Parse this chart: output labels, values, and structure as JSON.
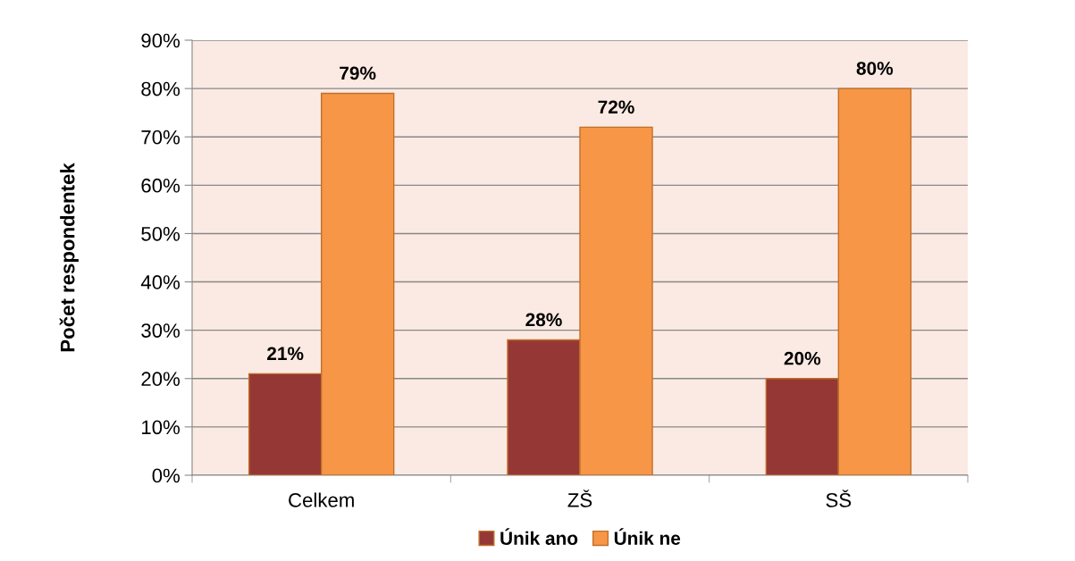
{
  "chart_data": {
    "type": "bar",
    "ylabel": "Počet respondentek",
    "categories": [
      "Celkem",
      "ZŠ",
      "SŠ"
    ],
    "series": [
      {
        "name": "Únik ano",
        "color": "#953735",
        "values": [
          21,
          28,
          20
        ],
        "value_labels": [
          "21%",
          "28%",
          "20%"
        ]
      },
      {
        "name": "Únik ne",
        "color": "#f79646",
        "values": [
          79,
          72,
          80
        ],
        "value_labels": [
          "79%",
          "72%",
          "80%"
        ]
      }
    ],
    "ylim": [
      0,
      90
    ],
    "yticks": [
      {
        "value": 0,
        "label": "0%"
      },
      {
        "value": 10,
        "label": "10%"
      },
      {
        "value": 20,
        "label": "20%"
      },
      {
        "value": 30,
        "label": "30%"
      },
      {
        "value": 40,
        "label": "40%"
      },
      {
        "value": 50,
        "label": "50%"
      },
      {
        "value": 60,
        "label": "60%"
      },
      {
        "value": 70,
        "label": "70%"
      },
      {
        "value": 80,
        "label": "80%"
      },
      {
        "value": 90,
        "label": "90%"
      }
    ],
    "grid": "y",
    "legend": "bottom"
  }
}
